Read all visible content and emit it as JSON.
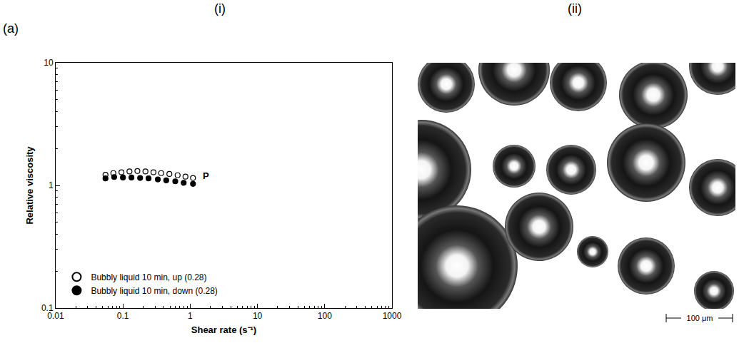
{
  "chart_data": {
    "type": "scatter",
    "xlabel": "Shear rate (s⁻¹)",
    "ylabel": "Relative viscosity",
    "log": true,
    "xlim": [
      0.01,
      1000
    ],
    "ylim": [
      0.1,
      10
    ],
    "xticks": [
      0.01,
      0.1,
      1,
      10,
      100,
      1000
    ],
    "yticks": [
      0.1,
      1,
      10
    ],
    "grid": false,
    "legend": "lower left",
    "series": [
      {
        "name": "Bubbly liquid 10 min, up (0.28)",
        "color": "#000000",
        "marker": "open circle",
        "x": [
          0.055,
          0.072,
          0.095,
          0.125,
          0.164,
          0.216,
          0.284,
          0.37,
          0.49,
          0.65,
          0.85,
          1.1
        ],
        "values": [
          1.22,
          1.26,
          1.28,
          1.3,
          1.31,
          1.3,
          1.28,
          1.26,
          1.24,
          1.21,
          1.18,
          1.15
        ]
      },
      {
        "name": "Bubbly liquid 10 min, down (0.28)",
        "color": "#000000",
        "marker": "filled circle",
        "x": [
          0.055,
          0.074,
          0.1,
          0.134,
          0.18,
          0.24,
          0.33,
          0.44,
          0.6,
          0.8,
          1.1
        ],
        "values": [
          1.14,
          1.17,
          1.16,
          1.16,
          1.15,
          1.14,
          1.12,
          1.1,
          1.08,
          1.05,
          1.03
        ]
      }
    ],
    "annotations": [
      {
        "text": "P",
        "x": 1.45,
        "y": 1.2
      }
    ]
  },
  "panel_labels": {
    "row": "(a)",
    "left": "(i)",
    "right": "(ii)"
  },
  "image": {
    "scale_bar": "100 μm"
  }
}
